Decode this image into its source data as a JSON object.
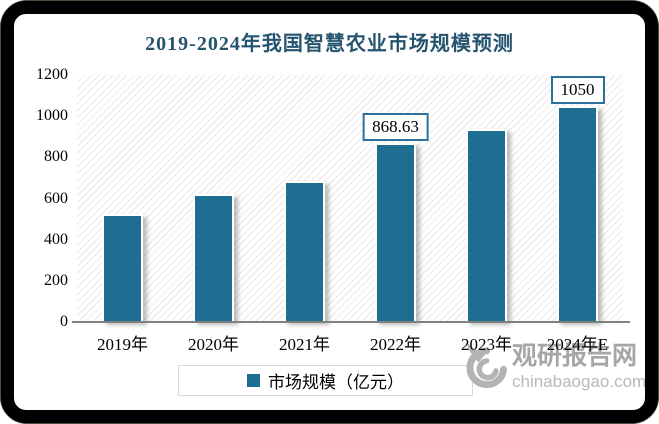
{
  "colors": {
    "bar": "#1E6E91",
    "title_text": "#25546F",
    "data_label_border": "#2B719B",
    "axis_line": "#808080",
    "legend_border": "#D9D9D9",
    "watermark_primary": "#A6A6A6",
    "watermark_secondary": "#B9B9B9",
    "hatch": "#E8E8E8",
    "frame": "#000000"
  },
  "chart_data": {
    "type": "bar",
    "title": "2019-2024年我国智慧农业市场规模预测",
    "categories": [
      "2019年",
      "2020年",
      "2021年",
      "2022年",
      "2023年",
      "2024年E"
    ],
    "series": [
      {
        "name": "市场规模（亿元）",
        "values": [
          525,
          620,
          683,
          868.63,
          940,
          1050
        ]
      }
    ],
    "data_labels": {
      "3": "868.63",
      "5": "1050"
    },
    "xlabel": "",
    "ylabel": "",
    "ylim": [
      0,
      1200
    ],
    "ytick_step": 200,
    "yticks": [
      0,
      200,
      400,
      600,
      800,
      1000,
      1200
    ],
    "grid": false,
    "legend_position": "bottom",
    "plot_background": "diagonal-hatch"
  },
  "watermark": {
    "site_name": "观研报告网",
    "domain": "chinabaogao.com",
    "logo": "swirl-icon"
  }
}
